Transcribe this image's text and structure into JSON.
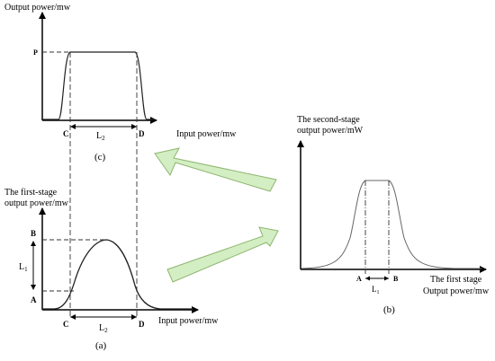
{
  "colors": {
    "ink": "#000000",
    "curve": "#555555",
    "arrow_fill": "#d4eec3",
    "arrow_stroke": "#8db570"
  },
  "panel_c": {
    "ylabel": "Output power/mw",
    "level_label": "P",
    "left_label": "C",
    "right_label": "D",
    "width_label_main": "L",
    "width_label_sub": "2",
    "xlabel": "Input power/mw",
    "caption": "(c)"
  },
  "panel_a": {
    "ylabel_line1": "The first-stage",
    "ylabel_line2": "output power/mw",
    "top_label": "B",
    "bottom_label": "A",
    "height_label_main": "L",
    "height_label_sub": "1",
    "left_label": "C",
    "right_label": "D",
    "width_label_main": "L",
    "width_label_sub": "2",
    "xlabel": "Input power/mw",
    "caption": "(a)"
  },
  "panel_b": {
    "ylabel_line1": "The second-stage",
    "ylabel_line2": "output power/mW",
    "left_label": "A",
    "right_label": "B",
    "width_label_main": "L",
    "width_label_sub": "1",
    "xlabel_line1": "The first stage",
    "xlabel_line2": "Output power/mw",
    "caption": "(b)"
  }
}
